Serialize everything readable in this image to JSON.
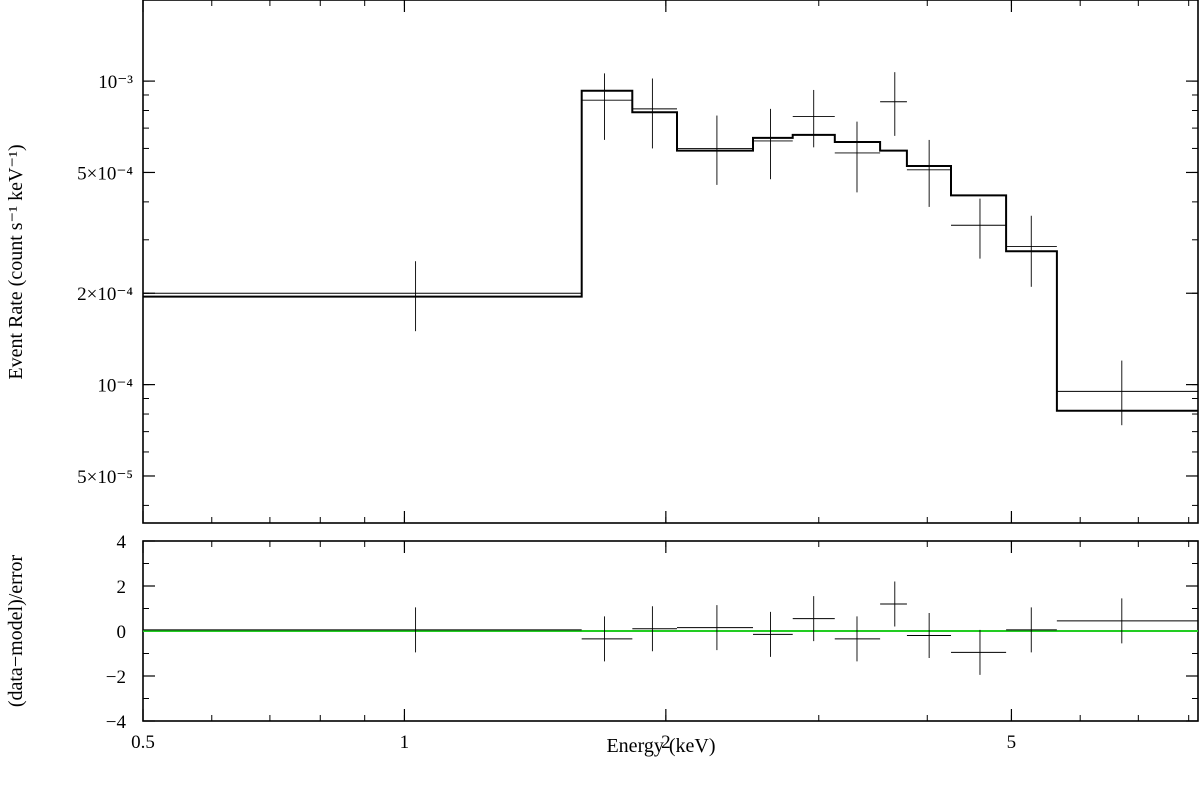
{
  "chart_data": [
    {
      "type": "line",
      "panel": "spectrum",
      "ylabel": "Event Rate (count s⁻¹ keV⁻¹)",
      "xscale": "log",
      "yscale": "log",
      "xlim": [
        0.5,
        8.2
      ],
      "ylim": [
        3.5e-05,
        0.00185
      ],
      "x_ticks": [
        {
          "value": 0.5,
          "label": "0.5"
        },
        {
          "value": 1,
          "label": "1"
        },
        {
          "value": 2,
          "label": "2"
        },
        {
          "value": 5,
          "label": "5"
        }
      ],
      "y_ticks": [
        {
          "value": 5e-05,
          "label": "5×10⁻⁵"
        },
        {
          "value": 0.0001,
          "label": "10⁻⁴"
        },
        {
          "value": 0.0002,
          "label": "2×10⁻⁴"
        },
        {
          "value": 0.0005,
          "label": "5×10⁻⁴"
        },
        {
          "value": 0.001,
          "label": "10⁻³"
        }
      ],
      "data_points": [
        {
          "x": 1.03,
          "xlo": 0.5,
          "xhi": 1.6,
          "y": 0.0002,
          "ylo": 0.00015,
          "yhi": 0.000255
        },
        {
          "x": 1.7,
          "xlo": 1.6,
          "xhi": 1.83,
          "y": 0.000865,
          "ylo": 0.00064,
          "yhi": 0.00106
        },
        {
          "x": 1.93,
          "xlo": 1.83,
          "xhi": 2.06,
          "y": 0.00081,
          "ylo": 0.0006,
          "yhi": 0.00102
        },
        {
          "x": 2.29,
          "xlo": 2.06,
          "xhi": 2.52,
          "y": 0.0006,
          "ylo": 0.000455,
          "yhi": 0.00077
        },
        {
          "x": 2.64,
          "xlo": 2.52,
          "xhi": 2.8,
          "y": 0.000635,
          "ylo": 0.000475,
          "yhi": 0.00081
        },
        {
          "x": 2.96,
          "xlo": 2.8,
          "xhi": 3.13,
          "y": 0.000765,
          "ylo": 0.000605,
          "yhi": 0.000935
        },
        {
          "x": 3.32,
          "xlo": 3.13,
          "xhi": 3.53,
          "y": 0.00058,
          "ylo": 0.00043,
          "yhi": 0.000735
        },
        {
          "x": 3.67,
          "xlo": 3.53,
          "xhi": 3.79,
          "y": 0.000855,
          "ylo": 0.00066,
          "yhi": 0.00107
        },
        {
          "x": 4.02,
          "xlo": 3.79,
          "xhi": 4.26,
          "y": 0.00051,
          "ylo": 0.000385,
          "yhi": 0.00064
        },
        {
          "x": 4.6,
          "xlo": 4.26,
          "xhi": 4.93,
          "y": 0.000335,
          "ylo": 0.00026,
          "yhi": 0.00041
        },
        {
          "x": 5.27,
          "xlo": 4.93,
          "xhi": 5.64,
          "y": 0.000285,
          "ylo": 0.00021,
          "yhi": 0.00036
        },
        {
          "x": 6.7,
          "xlo": 5.64,
          "xhi": 8.2,
          "y": 9.5e-05,
          "ylo": 7.35e-05,
          "yhi": 0.00012
        }
      ],
      "model_steps": [
        {
          "xlo": 0.5,
          "xhi": 1.6,
          "y": 0.000195
        },
        {
          "xlo": 1.6,
          "xhi": 1.83,
          "y": 0.00093
        },
        {
          "xlo": 1.83,
          "xhi": 2.06,
          "y": 0.00079
        },
        {
          "xlo": 2.06,
          "xhi": 2.52,
          "y": 0.00059
        },
        {
          "xlo": 2.52,
          "xhi": 2.8,
          "y": 0.00065
        },
        {
          "xlo": 2.8,
          "xhi": 3.13,
          "y": 0.000665
        },
        {
          "xlo": 3.13,
          "xhi": 3.53,
          "y": 0.00063
        },
        {
          "xlo": 3.53,
          "xhi": 3.79,
          "y": 0.00059
        },
        {
          "xlo": 3.79,
          "xhi": 4.26,
          "y": 0.000525
        },
        {
          "xlo": 4.26,
          "xhi": 4.93,
          "y": 0.00042
        },
        {
          "xlo": 4.93,
          "xhi": 5.64,
          "y": 0.000275
        },
        {
          "xlo": 5.64,
          "xhi": 8.2,
          "y": 8.2e-05
        }
      ],
      "colors": {
        "data": "#000000",
        "model": "#000000"
      }
    },
    {
      "type": "scatter",
      "panel": "residuals",
      "xlabel": "Energy (keV)",
      "ylabel": "(data−model)/error",
      "xscale": "log",
      "xlim": [
        0.5,
        8.2
      ],
      "ylim": [
        -4,
        4
      ],
      "x_ticks": [
        {
          "value": 0.5,
          "label": "0.5"
        },
        {
          "value": 1,
          "label": "1"
        },
        {
          "value": 2,
          "label": "2"
        },
        {
          "value": 5,
          "label": "5"
        }
      ],
      "y_ticks": [
        {
          "value": -4,
          "label": "−4"
        },
        {
          "value": -2,
          "label": "−2"
        },
        {
          "value": 0,
          "label": "0"
        },
        {
          "value": 2,
          "label": "2"
        },
        {
          "value": 4,
          "label": "4"
        }
      ],
      "data_points": [
        {
          "x": 1.03,
          "xlo": 0.5,
          "xhi": 1.6,
          "y": 0.05
        },
        {
          "x": 1.7,
          "xlo": 1.6,
          "xhi": 1.83,
          "y": -0.35
        },
        {
          "x": 1.93,
          "xlo": 1.83,
          "xhi": 2.06,
          "y": 0.1
        },
        {
          "x": 2.29,
          "xlo": 2.06,
          "xhi": 2.52,
          "y": 0.15
        },
        {
          "x": 2.64,
          "xlo": 2.52,
          "xhi": 2.8,
          "y": -0.15
        },
        {
          "x": 2.96,
          "xlo": 2.8,
          "xhi": 3.13,
          "y": 0.55
        },
        {
          "x": 3.32,
          "xlo": 3.13,
          "xhi": 3.53,
          "y": -0.35
        },
        {
          "x": 3.67,
          "xlo": 3.53,
          "xhi": 3.79,
          "y": 1.2
        },
        {
          "x": 4.02,
          "xlo": 3.79,
          "xhi": 4.26,
          "y": -0.2
        },
        {
          "x": 4.6,
          "xlo": 4.26,
          "xhi": 4.93,
          "y": -0.95
        },
        {
          "x": 5.27,
          "xlo": 4.93,
          "xhi": 5.64,
          "y": 0.05
        },
        {
          "x": 6.7,
          "xlo": 5.64,
          "xhi": 8.2,
          "y": 0.45
        }
      ],
      "error": 1,
      "reference_line": 0,
      "colors": {
        "data": "#000000",
        "reference_line": "#22cc22"
      }
    }
  ]
}
